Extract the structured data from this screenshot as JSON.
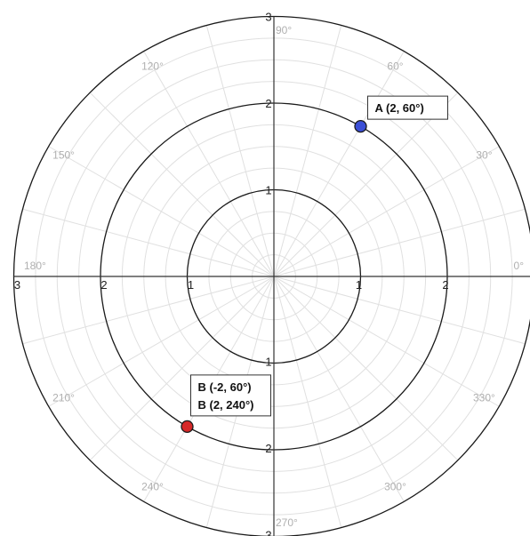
{
  "grid": {
    "radial_max": 3,
    "major_rings": [
      1,
      2,
      3
    ],
    "minor_ring_step": 0.25,
    "spoke_step_deg": 15,
    "colors": {
      "major": "#1a1a1a",
      "minor": "#e0e0e0",
      "axis": "#333333",
      "degree_text": "#b0b0b0"
    }
  },
  "radial_ticks": {
    "x_positive": [
      "1",
      "2"
    ],
    "x_negative": [
      "1",
      "2",
      "3"
    ],
    "y_positive": [
      "1",
      "2",
      "3"
    ],
    "y_negative": [
      "1",
      "2",
      "3"
    ]
  },
  "angle_labels": [
    {
      "deg": 0,
      "text": "0°"
    },
    {
      "deg": 30,
      "text": "30°"
    },
    {
      "deg": 60,
      "text": "60°"
    },
    {
      "deg": 90,
      "text": "90°"
    },
    {
      "deg": 120,
      "text": "120°"
    },
    {
      "deg": 150,
      "text": "150°"
    },
    {
      "deg": 180,
      "text": "180°"
    },
    {
      "deg": 210,
      "text": "210°"
    },
    {
      "deg": 240,
      "text": "240°"
    },
    {
      "deg": 270,
      "text": "270°"
    },
    {
      "deg": 300,
      "text": "300°"
    },
    {
      "deg": 330,
      "text": "330°"
    }
  ],
  "points": [
    {
      "id": "A",
      "r": 2,
      "theta_deg": 60,
      "color": "#3b4fd6",
      "labels": [
        "A (2, 60°)"
      ]
    },
    {
      "id": "B",
      "r": 2,
      "theta_deg": 240,
      "color": "#d62828",
      "labels": [
        "B (-2, 60°)",
        "B (2, 240°)"
      ]
    }
  ]
}
